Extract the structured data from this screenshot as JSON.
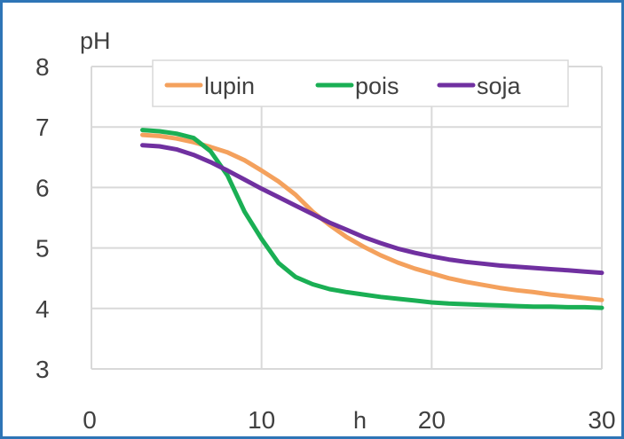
{
  "chart_data": {
    "type": "line",
    "x_unit_label": "h",
    "y_unit_label": "pH",
    "xlim": [
      0,
      30
    ],
    "ylim": [
      3,
      8
    ],
    "x_ticks": [
      0,
      10,
      20,
      30
    ],
    "y_ticks": [
      3,
      4,
      5,
      6,
      7,
      8
    ],
    "grid": true,
    "legend_position": "top",
    "series": [
      {
        "name": "lupin",
        "color": "#f4a15d",
        "points": [
          [
            3,
            6.87
          ],
          [
            4,
            6.85
          ],
          [
            5,
            6.81
          ],
          [
            6,
            6.75
          ],
          [
            7,
            6.67
          ],
          [
            8,
            6.58
          ],
          [
            9,
            6.45
          ],
          [
            10,
            6.28
          ],
          [
            11,
            6.1
          ],
          [
            12,
            5.88
          ],
          [
            13,
            5.6
          ],
          [
            14,
            5.38
          ],
          [
            15,
            5.18
          ],
          [
            16,
            5.02
          ],
          [
            17,
            4.88
          ],
          [
            18,
            4.76
          ],
          [
            19,
            4.66
          ],
          [
            20,
            4.58
          ],
          [
            21,
            4.5
          ],
          [
            22,
            4.44
          ],
          [
            23,
            4.39
          ],
          [
            24,
            4.34
          ],
          [
            25,
            4.3
          ],
          [
            26,
            4.27
          ],
          [
            27,
            4.23
          ],
          [
            28,
            4.2
          ],
          [
            29,
            4.17
          ],
          [
            30,
            4.14
          ]
        ]
      },
      {
        "name": "pois",
        "color": "#1aaf54",
        "points": [
          [
            3,
            6.95
          ],
          [
            4,
            6.93
          ],
          [
            5,
            6.89
          ],
          [
            6,
            6.82
          ],
          [
            7,
            6.6
          ],
          [
            8,
            6.2
          ],
          [
            9,
            5.6
          ],
          [
            10,
            5.15
          ],
          [
            11,
            4.75
          ],
          [
            12,
            4.52
          ],
          [
            13,
            4.4
          ],
          [
            14,
            4.32
          ],
          [
            15,
            4.27
          ],
          [
            16,
            4.23
          ],
          [
            17,
            4.19
          ],
          [
            18,
            4.16
          ],
          [
            19,
            4.13
          ],
          [
            20,
            4.1
          ],
          [
            21,
            4.08
          ],
          [
            22,
            4.07
          ],
          [
            23,
            4.06
          ],
          [
            24,
            4.05
          ],
          [
            25,
            4.04
          ],
          [
            26,
            4.03
          ],
          [
            27,
            4.03
          ],
          [
            28,
            4.02
          ],
          [
            29,
            4.02
          ],
          [
            30,
            4.01
          ]
        ]
      },
      {
        "name": "soja",
        "color": "#7030a0",
        "points": [
          [
            3,
            6.7
          ],
          [
            4,
            6.68
          ],
          [
            5,
            6.63
          ],
          [
            6,
            6.54
          ],
          [
            7,
            6.42
          ],
          [
            8,
            6.28
          ],
          [
            9,
            6.13
          ],
          [
            10,
            5.98
          ],
          [
            11,
            5.84
          ],
          [
            12,
            5.7
          ],
          [
            13,
            5.56
          ],
          [
            14,
            5.42
          ],
          [
            15,
            5.3
          ],
          [
            16,
            5.18
          ],
          [
            17,
            5.08
          ],
          [
            18,
            4.99
          ],
          [
            19,
            4.92
          ],
          [
            20,
            4.86
          ],
          [
            21,
            4.81
          ],
          [
            22,
            4.77
          ],
          [
            23,
            4.74
          ],
          [
            24,
            4.71
          ],
          [
            25,
            4.69
          ],
          [
            26,
            4.67
          ],
          [
            27,
            4.65
          ],
          [
            28,
            4.63
          ],
          [
            29,
            4.61
          ],
          [
            30,
            4.59
          ]
        ]
      }
    ]
  }
}
